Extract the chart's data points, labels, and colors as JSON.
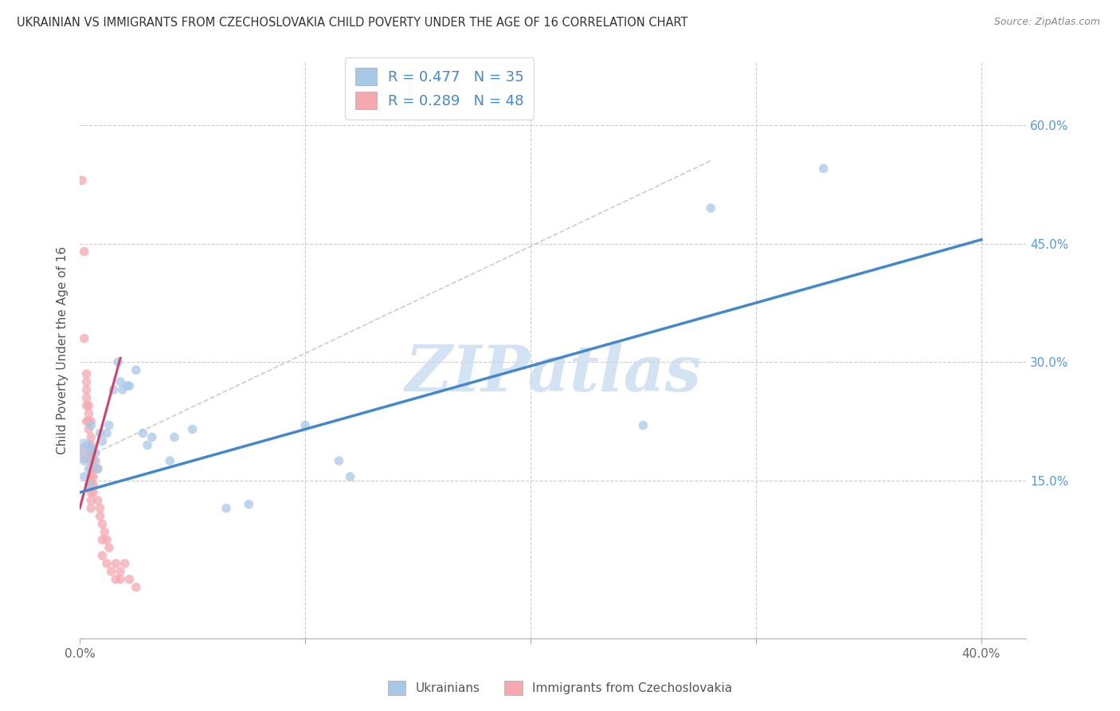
{
  "title": "UKRAINIAN VS IMMIGRANTS FROM CZECHOSLOVAKIA CHILD POVERTY UNDER THE AGE OF 16 CORRELATION CHART",
  "source": "Source: ZipAtlas.com",
  "ylabel": "Child Poverty Under the Age of 16",
  "xlim": [
    0.0,
    0.42
  ],
  "ylim": [
    -0.05,
    0.68
  ],
  "xticks": [
    0.0,
    0.1,
    0.2,
    0.3,
    0.4
  ],
  "xtick_labels": [
    "0.0%",
    "",
    "",
    "",
    "40.0%"
  ],
  "ytick_labels_right": [
    "60.0%",
    "45.0%",
    "30.0%",
    "15.0%"
  ],
  "ytick_vals_right": [
    0.6,
    0.45,
    0.3,
    0.15
  ],
  "legend_blue_text": "R = 0.477   N = 35",
  "legend_pink_text": "R = 0.289   N = 48",
  "legend_label_blue": "Ukrainians",
  "legend_label_pink": "Immigrants from Czechoslovakia",
  "blue_color": "#a8c8e8",
  "pink_color": "#f4a8b0",
  "blue_line_color": "#4488cc",
  "pink_line_color": "#cc4466",
  "watermark": "ZIPatlas",
  "watermark_color": "#c8dcf0",
  "blue_dots": [
    [
      0.002,
      0.175
    ],
    [
      0.002,
      0.155
    ],
    [
      0.003,
      0.195
    ],
    [
      0.004,
      0.165
    ],
    [
      0.004,
      0.145
    ],
    [
      0.005,
      0.22
    ],
    [
      0.005,
      0.19
    ],
    [
      0.006,
      0.175
    ],
    [
      0.007,
      0.185
    ],
    [
      0.008,
      0.165
    ],
    [
      0.009,
      0.21
    ],
    [
      0.01,
      0.2
    ],
    [
      0.012,
      0.21
    ],
    [
      0.013,
      0.22
    ],
    [
      0.015,
      0.265
    ],
    [
      0.017,
      0.3
    ],
    [
      0.018,
      0.275
    ],
    [
      0.019,
      0.265
    ],
    [
      0.021,
      0.27
    ],
    [
      0.022,
      0.27
    ],
    [
      0.025,
      0.29
    ],
    [
      0.028,
      0.21
    ],
    [
      0.03,
      0.195
    ],
    [
      0.032,
      0.205
    ],
    [
      0.04,
      0.175
    ],
    [
      0.042,
      0.205
    ],
    [
      0.05,
      0.215
    ],
    [
      0.065,
      0.115
    ],
    [
      0.075,
      0.12
    ],
    [
      0.1,
      0.22
    ],
    [
      0.115,
      0.175
    ],
    [
      0.12,
      0.155
    ],
    [
      0.25,
      0.22
    ],
    [
      0.28,
      0.495
    ],
    [
      0.33,
      0.545
    ]
  ],
  "blue_dot_large": [
    [
      0.002,
      0.19
    ]
  ],
  "pink_dots": [
    [
      0.001,
      0.53
    ],
    [
      0.002,
      0.44
    ],
    [
      0.002,
      0.33
    ],
    [
      0.003,
      0.285
    ],
    [
      0.003,
      0.275
    ],
    [
      0.003,
      0.265
    ],
    [
      0.003,
      0.245
    ],
    [
      0.003,
      0.225
    ],
    [
      0.003,
      0.255
    ],
    [
      0.004,
      0.245
    ],
    [
      0.004,
      0.235
    ],
    [
      0.004,
      0.225
    ],
    [
      0.004,
      0.215
    ],
    [
      0.005,
      0.225
    ],
    [
      0.005,
      0.205
    ],
    [
      0.005,
      0.195
    ],
    [
      0.005,
      0.185
    ],
    [
      0.005,
      0.175
    ],
    [
      0.005,
      0.165
    ],
    [
      0.005,
      0.155
    ],
    [
      0.005,
      0.145
    ],
    [
      0.005,
      0.135
    ],
    [
      0.005,
      0.125
    ],
    [
      0.005,
      0.115
    ],
    [
      0.006,
      0.165
    ],
    [
      0.006,
      0.155
    ],
    [
      0.006,
      0.145
    ],
    [
      0.006,
      0.135
    ],
    [
      0.007,
      0.175
    ],
    [
      0.008,
      0.165
    ],
    [
      0.008,
      0.125
    ],
    [
      0.009,
      0.115
    ],
    [
      0.009,
      0.105
    ],
    [
      0.01,
      0.095
    ],
    [
      0.01,
      0.075
    ],
    [
      0.01,
      0.055
    ],
    [
      0.011,
      0.085
    ],
    [
      0.012,
      0.075
    ],
    [
      0.012,
      0.045
    ],
    [
      0.013,
      0.065
    ],
    [
      0.014,
      0.035
    ],
    [
      0.016,
      0.045
    ],
    [
      0.016,
      0.025
    ],
    [
      0.018,
      0.025
    ],
    [
      0.018,
      0.035
    ],
    [
      0.02,
      0.045
    ],
    [
      0.022,
      0.025
    ],
    [
      0.025,
      0.015
    ]
  ],
  "pink_dot_large": [
    [
      0.003,
      0.185
    ]
  ],
  "blue_reg_line": [
    [
      0.0,
      0.135
    ],
    [
      0.4,
      0.455
    ]
  ],
  "pink_reg_line": [
    [
      0.0,
      0.115
    ],
    [
      0.018,
      0.305
    ]
  ],
  "diag_line": [
    [
      0.007,
      0.185
    ],
    [
      0.28,
      0.555
    ]
  ]
}
